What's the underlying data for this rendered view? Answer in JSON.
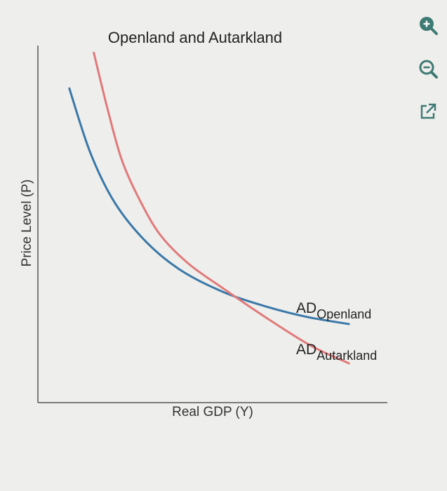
{
  "chart_data": {
    "type": "line",
    "title": "Openland and Autarkland",
    "xlabel": "Real GDP (Y)",
    "ylabel": "Price Level (P)",
    "grid": false,
    "xlim": [
      0,
      100
    ],
    "ylim": [
      0,
      100
    ],
    "series": [
      {
        "name": "AD",
        "subscript": "Openland",
        "color": "#3a78a8",
        "x": [
          9,
          15,
          22,
          31,
          41,
          53,
          65,
          77,
          89
        ],
        "y": [
          88,
          70,
          56,
          45,
          37,
          31,
          27,
          24,
          22
        ]
      },
      {
        "name": "AD",
        "subscript": "Autarkland",
        "color": "#e07a7a",
        "x": [
          16,
          20,
          24,
          29,
          35,
          43,
          53,
          65,
          78,
          89
        ],
        "y": [
          98,
          82,
          68,
          57,
          47,
          39,
          32,
          24,
          16,
          11
        ]
      }
    ]
  },
  "toolbar": {
    "zoom_in": "zoom-in-icon",
    "zoom_out": "zoom-out-icon",
    "popout": "external-link-icon",
    "icon_color": "#3d7a73"
  }
}
